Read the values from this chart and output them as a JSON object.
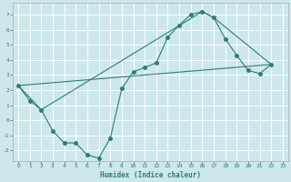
{
  "title": "",
  "xlabel": "Humidex (Indice chaleur)",
  "ylabel": "",
  "xlim": [
    -0.5,
    23.5
  ],
  "ylim": [
    -2.7,
    7.8
  ],
  "xticks": [
    0,
    1,
    2,
    3,
    4,
    5,
    6,
    7,
    8,
    9,
    10,
    11,
    12,
    13,
    14,
    15,
    16,
    17,
    18,
    19,
    20,
    21,
    22,
    23
  ],
  "yticks": [
    -2,
    -1,
    0,
    1,
    2,
    3,
    4,
    5,
    6,
    7
  ],
  "background_color": "#cde8ec",
  "grid_color": "#ffffff",
  "line_color": "#2e7d72",
  "line1_x": [
    0,
    1,
    2,
    3,
    4,
    5,
    6,
    7,
    8,
    9,
    10,
    11,
    12,
    13,
    14,
    15,
    16,
    17,
    18,
    19,
    20,
    21,
    22
  ],
  "line1_y": [
    2.3,
    1.3,
    0.7,
    -0.7,
    -1.5,
    -1.5,
    -2.3,
    -2.5,
    -1.2,
    2.1,
    3.2,
    3.5,
    3.8,
    5.5,
    6.3,
    7.0,
    7.2,
    6.8,
    5.4,
    4.3,
    3.3,
    3.1,
    3.7
  ],
  "line2_x": [
    0,
    2,
    16,
    17,
    22
  ],
  "line2_y": [
    2.3,
    0.7,
    7.2,
    6.8,
    3.7
  ],
  "line3_x": [
    0,
    22
  ],
  "line3_y": [
    2.3,
    3.7
  ],
  "marker_size": 2.5
}
